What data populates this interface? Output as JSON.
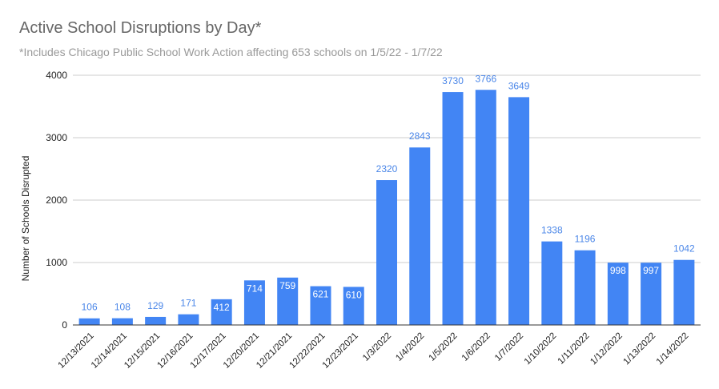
{
  "chart_data": {
    "type": "bar",
    "title": "Active School Disruptions by Day*",
    "subtitle": "*Includes Chicago Public School Work Action affecting 653 schools on 1/5/22 - 1/7/22",
    "xlabel": "",
    "ylabel": "Number of Schools Disrupted",
    "ylim": [
      0,
      4000
    ],
    "yticks": [
      0,
      1000,
      2000,
      3000,
      4000
    ],
    "grid": true,
    "legend": "none",
    "bar_color": "#4285f4",
    "categories": [
      "12/13/2021",
      "12/14/2021",
      "12/15/2021",
      "12/16/2021",
      "12/17/2021",
      "12/20/2021",
      "12/21/2021",
      "12/22/2021",
      "12/23/2021",
      "1/3/2022",
      "1/4/2022",
      "1/5/2022",
      "1/6/2022",
      "1/7/2022",
      "1/10/2022",
      "1/11/2022",
      "1/12/2022",
      "1/13/2022",
      "1/14/2022"
    ],
    "values": [
      106,
      108,
      129,
      171,
      412,
      714,
      759,
      621,
      610,
      2320,
      2843,
      3730,
      3766,
      3649,
      1338,
      1196,
      998,
      997,
      1042
    ],
    "data_labels": [
      "106",
      "108",
      "129",
      "171",
      "412",
      "714",
      "759",
      "621",
      "610",
      "2320",
      "2843",
      "3730",
      "3766",
      "3649",
      "1338",
      "1196",
      "998",
      "997",
      "1042"
    ]
  }
}
